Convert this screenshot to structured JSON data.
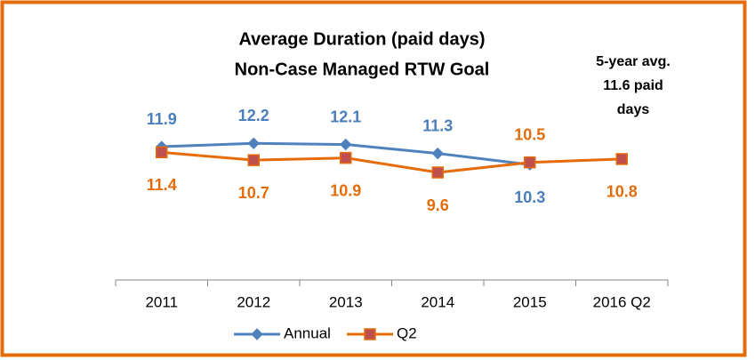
{
  "chart_data": {
    "type": "line",
    "title": "Average Duration (paid days)",
    "subtitle": "Non-Case Managed RTW Goal",
    "annotation": [
      "5-year avg.",
      "11.6 paid",
      "days"
    ],
    "categories": [
      "2011",
      "2012",
      "2013",
      "2014",
      "2015",
      "2016 Q2"
    ],
    "series": [
      {
        "name": "Annual",
        "color": "#4f81bd",
        "label_color": "#4a7ebb",
        "marker": "diamond",
        "values": [
          11.9,
          12.2,
          12.1,
          11.3,
          10.3,
          null
        ]
      },
      {
        "name": "Q2",
        "color": "#e46c0a",
        "label_color": "#e46c0a",
        "marker": "square",
        "marker_color": "#c0504d",
        "values": [
          11.4,
          10.7,
          10.9,
          9.6,
          10.5,
          10.8
        ]
      }
    ],
    "ylim": [
      0,
      25
    ],
    "grid": false,
    "legend": "bottom"
  }
}
